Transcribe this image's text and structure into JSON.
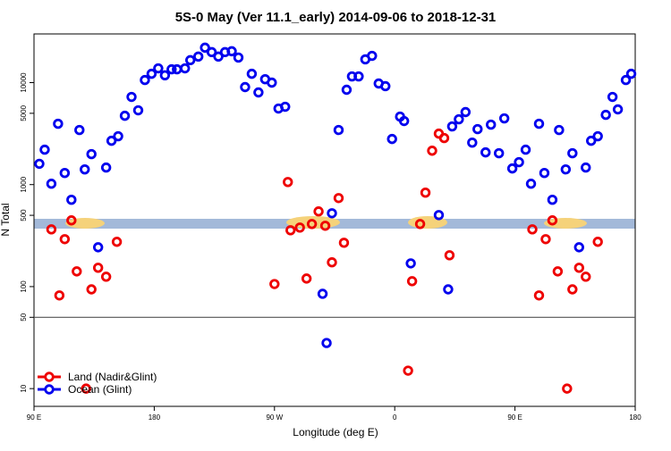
{
  "chart_data": {
    "type": "scatter",
    "title": "5S-0 May (Ver 11.1_early)   2014-09-06 to 2018-12-31",
    "x_label": "Longitude (deg E)",
    "y_label": "N Total",
    "log_y": true,
    "xlim": [
      90,
      540
    ],
    "ylim": [
      6.7,
      30000
    ],
    "xticks": [
      {
        "value": 90,
        "label": "90 E"
      },
      180,
      {
        "value": 270,
        "label": "90 W"
      },
      {
        "value": 360,
        "label": "0"
      },
      {
        "value": 450,
        "label": "90 E"
      },
      {
        "value": 540,
        "label": "180"
      }
    ],
    "yticks": [
      10,
      50,
      100,
      500,
      1000,
      5000,
      10000
    ],
    "hline": 50,
    "legend": "bottom-left",
    "series": [
      {
        "name": "Land (Nadir&Glint)",
        "color": "#ee0000",
        "x": [
          103,
          109,
          113,
          118,
          122,
          129,
          133,
          138,
          144,
          152,
          270,
          280,
          282,
          289,
          294,
          298,
          303,
          308,
          313,
          318,
          322,
          370,
          373,
          379,
          383,
          388,
          393,
          397,
          401,
          463,
          468,
          473,
          478,
          482,
          489,
          493,
          498,
          503,
          512
        ],
        "values": [
          364,
          82,
          292,
          446,
          141,
          10,
          94,
          153,
          125,
          275,
          106,
          1060,
          357,
          379,
          120,
          411,
          546,
          395,
          173,
          738,
          269,
          15,
          113,
          411,
          834,
          2150,
          3160,
          2860,
          203,
          364,
          82,
          292,
          446,
          141,
          10,
          94,
          153,
          125,
          275
        ]
      },
      {
        "name": "Ocean (Glint)",
        "color": "#0000ee",
        "x": [
          94,
          98,
          103,
          108,
          113,
          118,
          124,
          128,
          133,
          138,
          144,
          148,
          153,
          158,
          163,
          168,
          173,
          178,
          183,
          188,
          193,
          197,
          203,
          207,
          213,
          218,
          223,
          228,
          233,
          238,
          243,
          248,
          253,
          258,
          263,
          268,
          273,
          278,
          306,
          309,
          313,
          318,
          324,
          328,
          333,
          338,
          343,
          348,
          353,
          358,
          364,
          367,
          372,
          393,
          400,
          403,
          408,
          413,
          418,
          422,
          428,
          432,
          438,
          442,
          448,
          453,
          458,
          462,
          468,
          472,
          478,
          483,
          488,
          493,
          498,
          503,
          507,
          512,
          518,
          523,
          527,
          533,
          537
        ],
        "values": [
          1600,
          2200,
          1020,
          3950,
          1300,
          710,
          3430,
          1410,
          1990,
          243,
          1470,
          2690,
          2980,
          4730,
          7240,
          5350,
          10600,
          12200,
          13800,
          11800,
          13500,
          13500,
          13800,
          16600,
          18000,
          22000,
          19900,
          18000,
          19900,
          20300,
          17600,
          9040,
          12200,
          8010,
          10800,
          10000,
          5570,
          5800,
          85,
          28,
          524,
          3430,
          8510,
          11500,
          11500,
          16900,
          18300,
          9800,
          9230,
          2800,
          4640,
          4200,
          169,
          503,
          94,
          3720,
          4370,
          5140,
          2580,
          3500,
          2070,
          3870,
          2030,
          4460,
          1440,
          1660,
          2200,
          1020,
          3950,
          1300,
          710,
          3430,
          1410,
          2030,
          243,
          1470,
          2690,
          2980,
          4830,
          7240,
          5460,
          10600,
          12200
        ]
      }
    ]
  }
}
